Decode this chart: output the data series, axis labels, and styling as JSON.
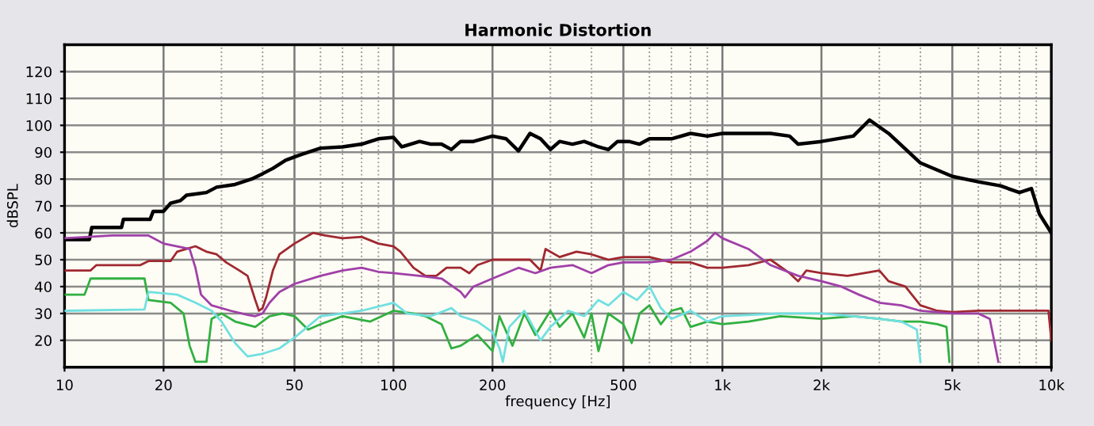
{
  "chart_data": {
    "type": "line",
    "title": "Harmonic Distortion",
    "xlabel": "frequency [Hz]",
    "ylabel": "dBSPL",
    "log": "x",
    "grid": true,
    "legend": false,
    "marker": "none",
    "line_style": "solid",
    "xlim": [
      10,
      10000
    ],
    "xticks": [
      10,
      20,
      50,
      100,
      200,
      500,
      {
        "value": 1000,
        "label": "1k"
      },
      {
        "value": 2000,
        "label": "2k"
      },
      {
        "value": 5000,
        "label": "5k"
      },
      {
        "value": 10000,
        "label": "10k"
      }
    ],
    "ylim": [
      10,
      130
    ],
    "yticks": [
      20,
      30,
      40,
      50,
      60,
      70,
      80,
      90,
      100,
      110,
      120
    ],
    "series": [
      {
        "color": "#000000",
        "x": [
          10,
          11.9,
          12.1,
          14.9,
          15.1,
          18.2,
          18.6,
          20,
          21,
          22.5,
          23.5,
          27,
          29,
          33,
          37,
          40,
          43,
          47,
          52,
          60,
          70,
          80,
          90,
          100,
          106,
          120,
          130,
          140,
          150,
          160,
          175,
          200,
          220,
          240,
          260,
          280,
          300,
          320,
          350,
          380,
          420,
          450,
          480,
          520,
          560,
          600,
          700,
          800,
          900,
          1000,
          1200,
          1400,
          1600,
          1700,
          2000,
          2500,
          2800,
          3200,
          4000,
          5000,
          6000,
          7000,
          8000,
          8700,
          9200,
          10000
        ],
        "values": [
          57.5,
          57.5,
          62,
          62,
          65,
          65,
          68,
          68,
          71,
          72,
          74,
          75,
          77,
          78,
          80,
          82,
          84,
          87,
          89,
          91.5,
          92,
          93,
          95,
          95.5,
          92,
          94,
          93,
          93,
          91,
          94,
          94,
          96,
          95,
          90.5,
          97,
          95,
          91,
          94,
          93,
          94,
          92,
          91,
          94,
          94,
          93,
          95,
          95,
          97,
          96,
          97,
          97,
          97,
          96,
          93,
          94,
          96,
          102,
          97,
          86,
          81,
          79,
          77.5,
          75,
          76.5,
          67,
          60
        ]
      },
      {
        "color": "#a02830",
        "x": [
          10,
          12,
          12.5,
          17,
          18,
          21,
          22,
          25,
          27,
          29,
          31,
          34,
          36,
          38,
          39,
          40,
          41,
          43,
          45,
          50,
          57,
          62,
          70,
          80,
          90,
          100,
          105,
          115,
          125,
          135,
          145,
          160,
          170,
          180,
          200,
          230,
          260,
          280,
          290,
          320,
          360,
          400,
          450,
          500,
          600,
          700,
          800,
          900,
          1000,
          1200,
          1400,
          1600,
          1700,
          1800,
          2000,
          2400,
          2700,
          3000,
          3200,
          3600,
          4000,
          4500,
          5000,
          6000,
          7000,
          8000,
          9000,
          9800,
          10000
        ],
        "values": [
          46,
          46,
          48,
          48,
          49.5,
          49.5,
          53,
          55,
          53,
          52,
          49,
          46,
          44,
          35,
          31,
          32,
          36,
          46,
          52,
          56,
          60,
          59,
          58,
          58.5,
          56,
          55,
          53,
          47,
          44,
          44,
          47,
          47,
          45,
          48,
          50,
          50,
          50,
          46,
          54,
          51,
          53,
          52,
          50,
          51,
          51,
          49,
          49,
          47,
          47,
          48,
          50,
          45,
          42,
          46,
          45,
          44,
          45,
          46,
          42,
          40,
          33,
          31,
          30.5,
          31,
          31,
          31,
          31,
          31,
          20
        ]
      },
      {
        "color": "#a040a8",
        "x": [
          10,
          14,
          18,
          20,
          24,
          25,
          26,
          28,
          32,
          36,
          38,
          40,
          42,
          45,
          50,
          60,
          70,
          80,
          90,
          100,
          120,
          140,
          160,
          165,
          175,
          200,
          240,
          270,
          300,
          350,
          400,
          450,
          500,
          600,
          700,
          800,
          900,
          950,
          1000,
          1200,
          1400,
          1700,
          2000,
          2300,
          2600,
          3000,
          3500,
          4000,
          5000,
          6000,
          6500,
          6900
        ],
        "values": [
          58,
          59,
          59,
          56,
          54,
          47,
          37,
          33,
          31,
          29.5,
          29,
          30,
          34,
          38,
          41,
          44,
          46,
          47,
          45.5,
          45,
          44,
          43,
          38,
          36,
          40,
          43,
          47,
          45,
          47,
          48,
          45,
          48,
          49,
          49,
          50,
          53,
          57,
          60,
          58,
          54,
          48,
          44,
          42,
          40,
          37,
          34,
          33,
          31,
          30,
          30,
          28,
          12
        ]
      },
      {
        "color": "#30b040",
        "x": [
          10,
          11.5,
          12,
          17.5,
          18,
          21,
          23,
          24,
          25,
          27,
          28,
          30,
          33,
          38,
          42,
          46,
          50,
          55,
          60,
          70,
          85,
          100,
          115,
          125,
          140,
          150,
          160,
          180,
          200,
          210,
          230,
          250,
          270,
          300,
          320,
          350,
          380,
          400,
          420,
          450,
          500,
          530,
          560,
          600,
          650,
          700,
          750,
          800,
          900,
          1000,
          1200,
          1500,
          2000,
          2500,
          3000,
          3500,
          4000,
          4500,
          4800,
          4900
        ],
        "values": [
          37,
          37,
          43,
          43,
          35,
          34,
          30,
          18,
          12,
          12,
          28,
          30,
          27,
          25,
          29,
          30,
          29,
          24,
          26,
          29,
          27,
          31,
          30,
          29,
          26,
          17,
          18,
          22,
          16,
          29,
          18,
          30,
          22,
          31,
          25,
          30,
          21,
          30,
          16,
          30,
          26,
          19,
          30,
          33,
          26,
          31,
          32,
          25,
          27,
          26,
          27,
          29,
          28,
          29,
          28,
          27,
          27,
          26,
          25,
          12
        ]
      },
      {
        "color": "#70e0e0",
        "x": [
          10,
          17.5,
          18,
          22,
          25,
          28,
          30,
          33,
          36,
          40,
          45,
          50,
          60,
          70,
          80,
          100,
          110,
          130,
          150,
          160,
          180,
          200,
          210,
          215,
          225,
          250,
          280,
          300,
          340,
          380,
          420,
          450,
          500,
          550,
          600,
          650,
          700,
          800,
          900,
          1000,
          1500,
          2000,
          2500,
          3000,
          3500,
          3900,
          4000
        ],
        "values": [
          31,
          31.5,
          38,
          37,
          34,
          31,
          27,
          19,
          14,
          15,
          17,
          21,
          29,
          30,
          31,
          34,
          30,
          29,
          32,
          29,
          27,
          23,
          17,
          12,
          25,
          31,
          20,
          25,
          31,
          29,
          35,
          33,
          38,
          35,
          40,
          32,
          28,
          31,
          27,
          29,
          30,
          30,
          29,
          28,
          27,
          24,
          12
        ]
      }
    ]
  }
}
